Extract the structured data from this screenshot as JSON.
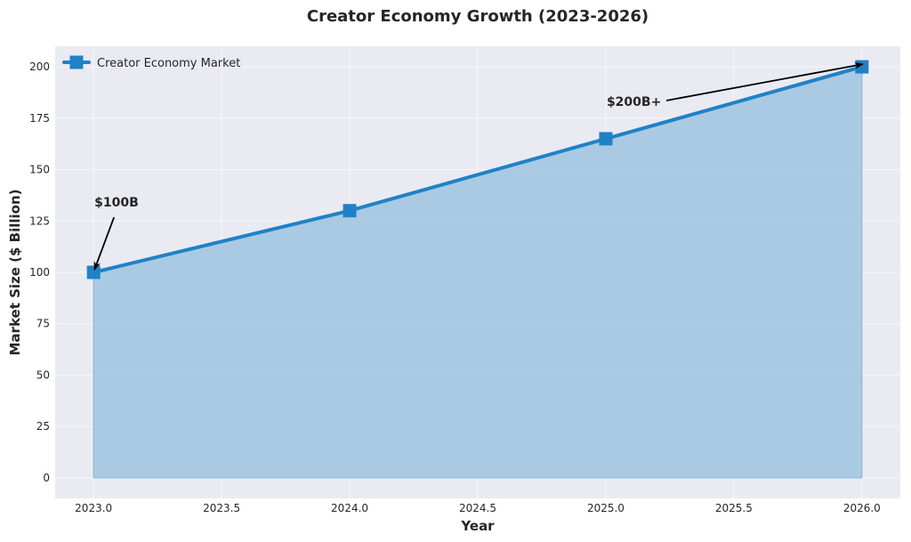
{
  "chart_data": {
    "type": "area",
    "title": "Creator Economy Growth (2023-2026)",
    "xlabel": "Year",
    "ylabel": "Market Size ($ Billion)",
    "x": [
      2023,
      2024,
      2025,
      2026
    ],
    "series": [
      {
        "name": "Creator Economy Market",
        "values": [
          100,
          130,
          165,
          200
        ]
      }
    ],
    "xlim": [
      2022.85,
      2026.15
    ],
    "ylim": [
      -10,
      210
    ],
    "xticks": [
      2023.0,
      2023.5,
      2024.0,
      2024.5,
      2025.0,
      2025.5,
      2026.0
    ],
    "xtick_labels": [
      "2023.0",
      "2023.5",
      "2024.0",
      "2024.5",
      "2025.0",
      "2025.5",
      "2026.0"
    ],
    "yticks": [
      0,
      25,
      50,
      75,
      100,
      125,
      150,
      175,
      200
    ],
    "ytick_labels": [
      "0",
      "25",
      "50",
      "75",
      "100",
      "125",
      "150",
      "175",
      "200"
    ],
    "grid": true,
    "legend_position": "top-left",
    "annotations": [
      {
        "text": "$100B",
        "point": [
          2023,
          100
        ],
        "text_at": [
          2023.0,
          132
        ]
      },
      {
        "text": "$200B+",
        "point": [
          2026,
          200
        ],
        "text_at": [
          2025.0,
          181
        ]
      }
    ],
    "colors": {
      "line": "#1f82c6",
      "fill": "#a6c8e2",
      "plot_bg": "#eaeaf2",
      "grid": "#f6f6fa",
      "text": "#262626"
    }
  }
}
